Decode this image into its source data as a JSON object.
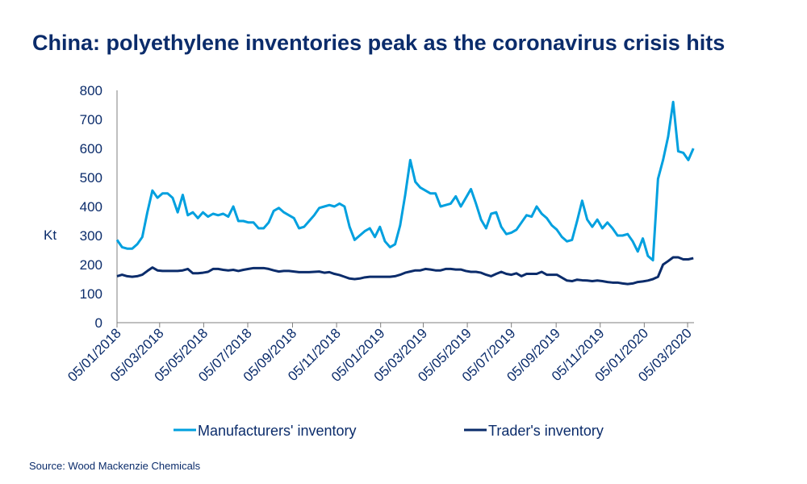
{
  "chart_data": {
    "type": "line",
    "title": "China: polyethylene inventories peak as the coronavirus crisis hits",
    "ylabel": "Kt",
    "xlabel": "",
    "ylim": [
      0,
      800
    ],
    "yticks": [
      "0",
      "100",
      "200",
      "300",
      "400",
      "500",
      "600",
      "700",
      "800"
    ],
    "xticks": [
      "05/01/2018",
      "05/03/2018",
      "05/05/2018",
      "05/07/2018",
      "05/09/2018",
      "05/11/2018",
      "05/01/2019",
      "05/03/2019",
      "05/05/2019",
      "05/07/2019",
      "05/09/2019",
      "05/11/2019",
      "05/01/2020",
      "05/03/2020"
    ],
    "xtick_dates": [
      "2018-01-05",
      "2018-03-05",
      "2018-05-05",
      "2018-07-05",
      "2018-09-05",
      "2018-11-05",
      "2019-01-05",
      "2019-03-05",
      "2019-05-05",
      "2019-07-05",
      "2019-09-05",
      "2019-11-05",
      "2020-01-05",
      "2020-03-05"
    ],
    "x_start": "2018-01-05",
    "x_step": "weekly",
    "grid": false,
    "legend_placement": "bottom",
    "series": [
      {
        "name": "Manufacturers' inventory",
        "color": "#00a0df",
        "values": [
          285,
          260,
          255,
          255,
          270,
          295,
          380,
          455,
          430,
          445,
          445,
          430,
          380,
          440,
          370,
          380,
          360,
          380,
          365,
          375,
          370,
          375,
          365,
          400,
          350,
          350,
          345,
          345,
          325,
          325,
          345,
          385,
          395,
          380,
          370,
          360,
          325,
          330,
          350,
          370,
          395,
          400,
          405,
          400,
          410,
          400,
          330,
          285,
          300,
          315,
          325,
          295,
          330,
          280,
          260,
          270,
          335,
          440,
          560,
          485,
          465,
          455,
          445,
          445,
          400,
          405,
          410,
          435,
          400,
          430,
          460,
          410,
          355,
          325,
          375,
          380,
          330,
          305,
          310,
          320,
          345,
          370,
          365,
          400,
          375,
          360,
          335,
          320,
          295,
          280,
          285,
          350,
          420,
          355,
          330,
          355,
          325,
          345,
          325,
          300,
          300,
          305,
          280,
          245,
          290,
          230,
          215,
          495,
          560,
          640,
          760,
          590,
          585,
          560,
          600
        ]
      },
      {
        "name": "Trader's inventory",
        "color": "#0b2c6b",
        "values": [
          160,
          165,
          160,
          158,
          160,
          165,
          178,
          190,
          180,
          178,
          178,
          178,
          178,
          180,
          185,
          170,
          170,
          172,
          175,
          185,
          185,
          182,
          180,
          182,
          178,
          182,
          185,
          188,
          188,
          188,
          185,
          180,
          176,
          178,
          178,
          176,
          174,
          174,
          174,
          175,
          176,
          172,
          174,
          168,
          164,
          158,
          152,
          150,
          152,
          156,
          158,
          158,
          158,
          158,
          158,
          160,
          165,
          172,
          176,
          180,
          180,
          185,
          183,
          180,
          180,
          185,
          185,
          183,
          183,
          178,
          175,
          175,
          172,
          165,
          160,
          168,
          175,
          168,
          165,
          170,
          160,
          168,
          168,
          168,
          175,
          165,
          165,
          165,
          155,
          145,
          143,
          148,
          146,
          145,
          143,
          145,
          143,
          140,
          138,
          138,
          135,
          133,
          135,
          140,
          142,
          145,
          150,
          158,
          200,
          212,
          225,
          225,
          218,
          218,
          222
        ]
      }
    ]
  },
  "source": "Source: Wood Mackenzie Chemicals"
}
